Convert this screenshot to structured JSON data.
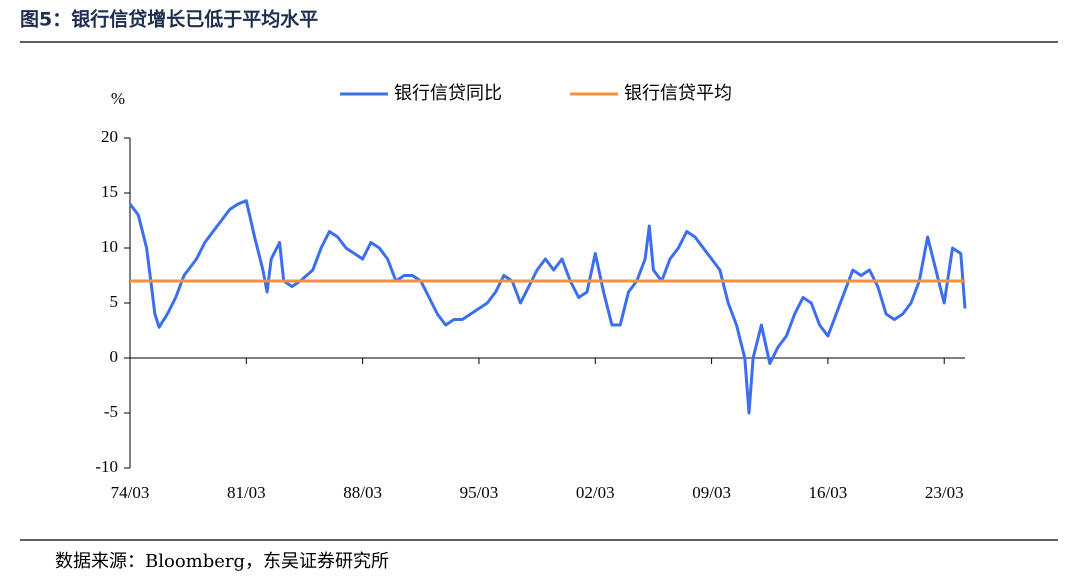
{
  "chart_data": {
    "type": "line",
    "title": "图5：银行信贷增长已低于平均水平",
    "y_label": "%",
    "source": "数据来源：Bloomberg，东吴证券研究所",
    "xlim": [
      "74/03",
      "24/06"
    ],
    "xticks": [
      "74/03",
      "81/03",
      "88/03",
      "95/03",
      "02/03",
      "09/03",
      "16/03",
      "23/03"
    ],
    "ylim": [
      -10,
      20
    ],
    "yticks": [
      -10,
      -5,
      0,
      5,
      10,
      15,
      20
    ],
    "x": [
      "74/03",
      "74/09",
      "75/03",
      "75/06",
      "75/09",
      "75/12",
      "76/06",
      "76/12",
      "77/06",
      "78/03",
      "78/09",
      "79/03",
      "79/09",
      "80/03",
      "80/09",
      "81/03",
      "81/09",
      "82/03",
      "82/06",
      "82/09",
      "83/03",
      "83/06",
      "83/12",
      "84/06",
      "85/03",
      "85/09",
      "86/03",
      "86/09",
      "87/03",
      "87/09",
      "88/03",
      "88/09",
      "89/03",
      "89/09",
      "90/03",
      "90/09",
      "91/03",
      "91/09",
      "92/03",
      "92/09",
      "93/03",
      "93/09",
      "94/03",
      "94/09",
      "95/03",
      "95/09",
      "96/03",
      "96/09",
      "97/03",
      "97/09",
      "98/03",
      "98/09",
      "99/03",
      "99/09",
      "00/03",
      "00/09",
      "01/03",
      "01/09",
      "02/03",
      "02/09",
      "03/03",
      "03/09",
      "04/03",
      "04/09",
      "05/03",
      "05/06",
      "05/09",
      "06/03",
      "06/09",
      "07/03",
      "07/09",
      "08/03",
      "08/09",
      "09/03",
      "09/09",
      "10/03",
      "10/09",
      "11/03",
      "11/06",
      "11/09",
      "12/03",
      "12/09",
      "13/03",
      "13/09",
      "14/03",
      "14/09",
      "15/03",
      "15/09",
      "16/03",
      "16/09",
      "17/03",
      "17/09",
      "18/03",
      "18/09",
      "19/03",
      "19/09",
      "20/03",
      "20/09",
      "21/03",
      "21/09",
      "22/03",
      "22/09",
      "23/03",
      "23/09",
      "24/03",
      "24/06"
    ],
    "series": [
      {
        "name": "银行信贷同比",
        "color": "#3c6ef0",
        "values": [
          14,
          13,
          10,
          7,
          4,
          2.8,
          4,
          5.5,
          7.5,
          9,
          10.5,
          11.5,
          12.5,
          13.5,
          14,
          14.3,
          11,
          8,
          6,
          9,
          10.5,
          7,
          6.5,
          7,
          8,
          10,
          11.5,
          11,
          10,
          9.5,
          9,
          10.5,
          10,
          9,
          7,
          7.5,
          7.5,
          7,
          5.5,
          4,
          3,
          3.5,
          3.5,
          4,
          4.5,
          5,
          6,
          7.5,
          7,
          5,
          6.5,
          8,
          9,
          8,
          9,
          7,
          5.5,
          6,
          9.5,
          6,
          3,
          3,
          6,
          7,
          9,
          12,
          8,
          7,
          9,
          10,
          11.5,
          11,
          10,
          9,
          8,
          5,
          3,
          0,
          -5,
          0,
          3,
          -0.5,
          1,
          2,
          4,
          5.5,
          5,
          3,
          2,
          4,
          6,
          8,
          7.5,
          8,
          6.5,
          4,
          3.5,
          4,
          5,
          7,
          11,
          8,
          5,
          10,
          9.5,
          4.5
        ]
      },
      {
        "name": "银行信贷平均",
        "color": "#f5913b",
        "x": [
          "74/03",
          "24/06"
        ],
        "values": [
          7,
          7
        ]
      }
    ],
    "legend": "top"
  }
}
